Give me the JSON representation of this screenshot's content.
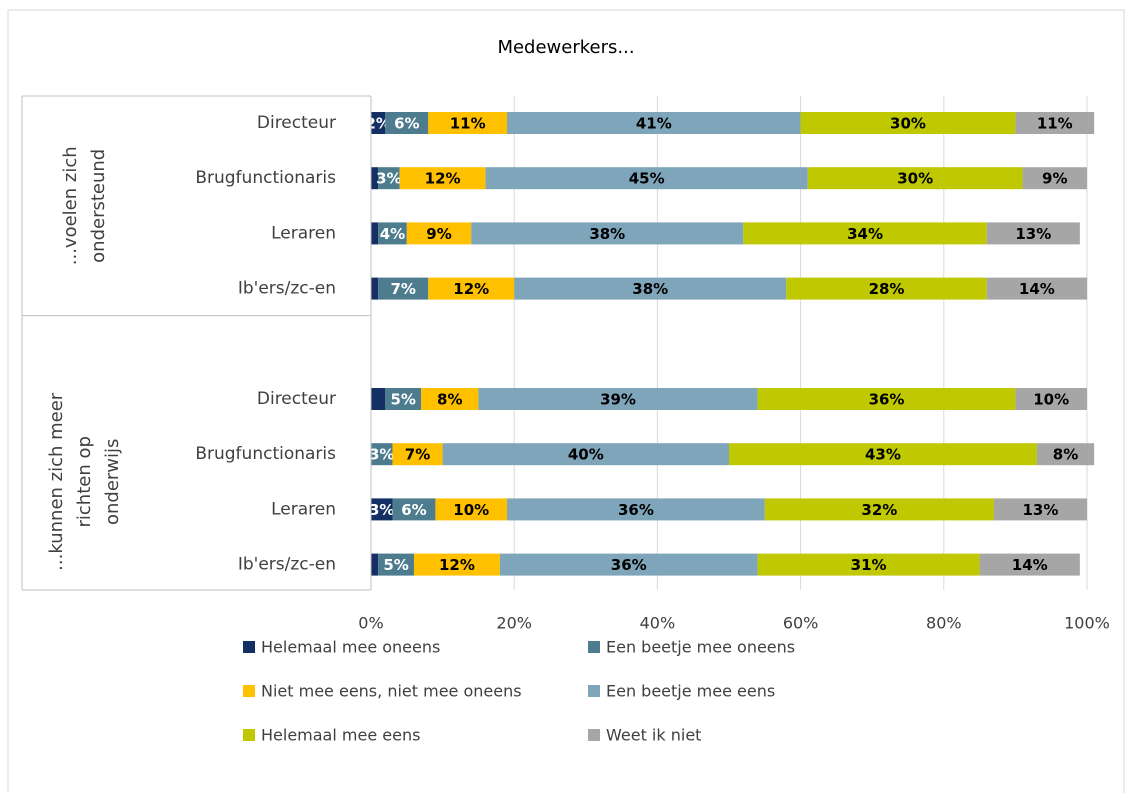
{
  "chart_data": {
    "type": "stacked-bar-horizontal",
    "title": "Medewerkers...",
    "category_groups": [
      {
        "name_lines": [
          "...voelen zich",
          "ondersteund"
        ],
        "categories": [
          "Directeur",
          "Brugfunctionaris",
          "Leraren",
          "Ib'ers/zc-en"
        ]
      },
      {
        "name_lines": [
          "...kunnen zich meer",
          "richten op",
          "onderwijs"
        ],
        "categories": [
          "Directeur",
          "Brugfunctionaris",
          "Leraren",
          "Ib'ers/zc-en"
        ]
      }
    ],
    "series": [
      {
        "name": "Helemaal mee oneens",
        "color": "#132f63",
        "label_color": "#ffffff",
        "values": [
          2,
          1,
          1,
          1,
          2,
          0,
          3,
          1
        ],
        "value_labels": [
          "2%",
          null,
          null,
          null,
          null,
          null,
          "3%",
          null
        ]
      },
      {
        "name": "Een beetje mee oneens",
        "color": "#4c7c8e",
        "label_color": "#ffffff",
        "values": [
          6,
          3,
          4,
          7,
          5,
          3,
          6,
          5
        ],
        "value_labels": [
          "6%",
          "3%",
          "4%",
          "7%",
          "5%",
          "3%",
          "6%",
          "5%"
        ]
      },
      {
        "name": "Niet mee eens, niet mee oneens",
        "color": "#ffc000",
        "label_color": "#000000",
        "values": [
          11,
          12,
          9,
          12,
          8,
          7,
          10,
          12
        ],
        "value_labels": [
          "11%",
          "12%",
          "9%",
          "12%",
          "8%",
          "7%",
          "10%",
          "12%"
        ]
      },
      {
        "name": "Een beetje mee eens",
        "color": "#7ea5b9",
        "label_color": "#000000",
        "values": [
          41,
          45,
          38,
          38,
          39,
          40,
          36,
          36
        ],
        "value_labels": [
          "41%",
          "45%",
          "38%",
          "38%",
          "39%",
          "40%",
          "36%",
          "36%"
        ]
      },
      {
        "name": "Helemaal mee eens",
        "color": "#bfc800",
        "label_color": "#000000",
        "values": [
          30,
          30,
          34,
          28,
          36,
          43,
          32,
          31
        ],
        "value_labels": [
          "30%",
          "30%",
          "34%",
          "28%",
          "36%",
          "43%",
          "32%",
          "31%"
        ]
      },
      {
        "name": "Weet ik niet",
        "color": "#a6a6a6",
        "label_color": "#000000",
        "values": [
          11,
          9,
          13,
          14,
          10,
          8,
          13,
          14
        ],
        "value_labels": [
          "11%",
          "9%",
          "13%",
          "14%",
          "10%",
          "8%",
          "13%",
          "14%"
        ]
      }
    ],
    "xlim": [
      0,
      100
    ],
    "xticks": [
      {
        "value": 0,
        "label": "0%"
      },
      {
        "value": 20,
        "label": "20%"
      },
      {
        "value": 40,
        "label": "40%"
      },
      {
        "value": 60,
        "label": "60%"
      },
      {
        "value": 80,
        "label": "80%"
      },
      {
        "value": 100,
        "label": "100%"
      }
    ],
    "grid": true,
    "legend": "bottom"
  }
}
